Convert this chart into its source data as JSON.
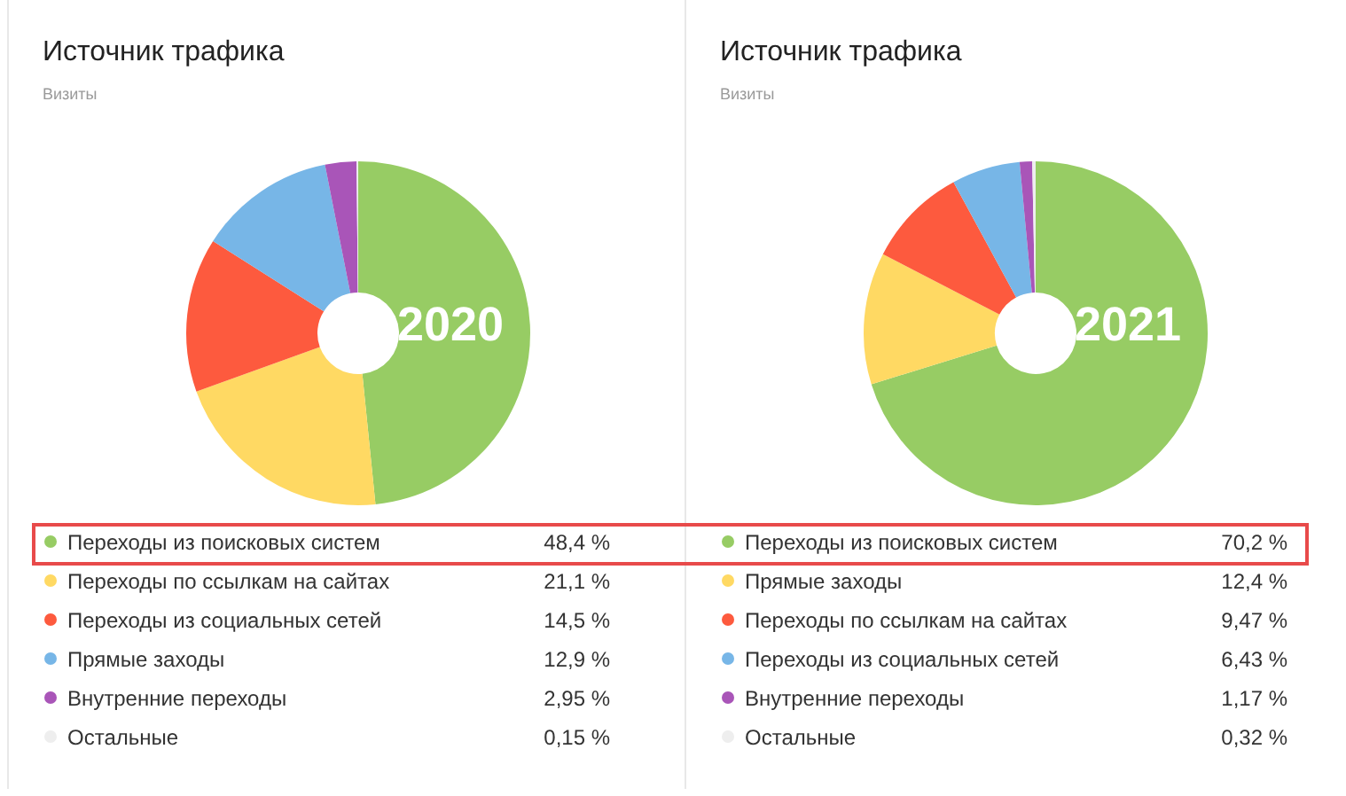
{
  "chart_data": [
    {
      "type": "donut",
      "title": "Источник трафика",
      "subtitle": "Визиты",
      "annotations": [
        "2020"
      ],
      "legend": "bottom",
      "categories": [
        "Переходы из поисковых систем",
        "Переходы по ссылкам на сайтах",
        "Переходы из социальных сетей",
        "Прямые заходы",
        "Внутренние переходы",
        "Остальные"
      ],
      "values": [
        48.4,
        21.1,
        14.5,
        12.9,
        2.95,
        0.15
      ],
      "value_labels": [
        "48,4 %",
        "21,1 %",
        "14,5 %",
        "12,9 %",
        "2,95 %",
        "0,15 %"
      ],
      "colors": [
        "#97cc64",
        "#ffd963",
        "#fd5a3e",
        "#77b6e7",
        "#a955b8",
        "#eeeeee"
      ]
    },
    {
      "type": "donut",
      "title": "Источник трафика",
      "subtitle": "Визиты",
      "annotations": [
        "2021"
      ],
      "legend": "bottom",
      "categories": [
        "Переходы из поисковых систем",
        "Прямые заходы",
        "Переходы по ссылкам на сайтах",
        "Переходы из социальных сетей",
        "Внутренние переходы",
        "Остальные"
      ],
      "values": [
        70.2,
        12.4,
        9.47,
        6.43,
        1.17,
        0.32
      ],
      "value_labels": [
        "70,2 %",
        "12,4 %",
        "9,47 %",
        "6,43 %",
        "1,17 %",
        "0,32 %"
      ],
      "colors": [
        "#97cc64",
        "#ffd963",
        "#fd5a3e",
        "#77b6e7",
        "#a955b8",
        "#eeeeee"
      ]
    }
  ]
}
